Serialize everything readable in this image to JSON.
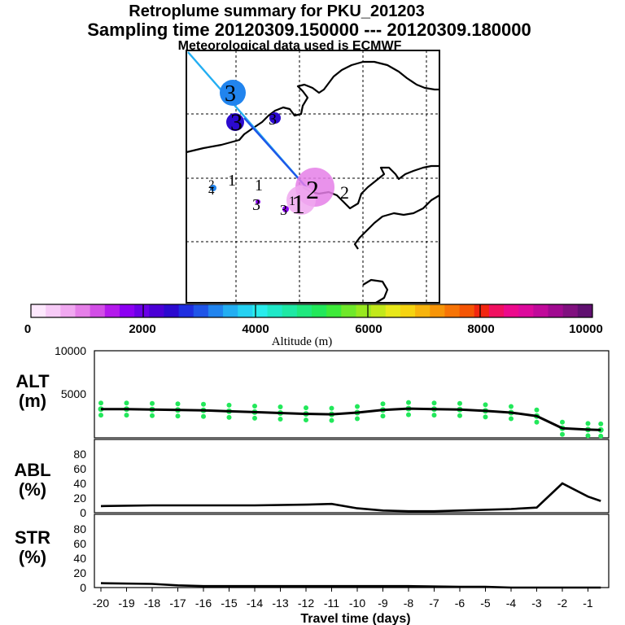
{
  "header": {
    "title": "Retroplume summary for PKU_201203",
    "sampling": "Sampling time   20120309.150000 --- 20120309.180000",
    "met": "Meteorological data used is ECMWF"
  },
  "colorbar": {
    "label": "Altitude (m)",
    "ticks": [
      "0",
      "2000",
      "4000",
      "6000",
      "8000",
      "10000"
    ],
    "colors": [
      "#fde8fd",
      "#f7cbf7",
      "#f0a8f0",
      "#e57fe8",
      "#d24ee6",
      "#b41aec",
      "#8c00f2",
      "#6a00e6",
      "#4b00d6",
      "#2c0acf",
      "#1f2ee0",
      "#1f55e8",
      "#2184ee",
      "#23aef2",
      "#25d1f2",
      "#28ecec",
      "#1fe8c8",
      "#1ee8a4",
      "#1fe87e",
      "#22e85a",
      "#3eea3a",
      "#6fe82a",
      "#98e81e",
      "#c2e81a",
      "#e8e81a",
      "#f5d411",
      "#f7b40e",
      "#f79508",
      "#f77406",
      "#f55505",
      "#f22610",
      "#f01060",
      "#ec0a8c",
      "#dc0a9c",
      "#c00a9a",
      "#a00a90",
      "#80107f",
      "#601070"
    ]
  },
  "map": {
    "labels": [
      {
        "text": "3"
      },
      {
        "text": "3"
      },
      {
        "text": "3"
      },
      {
        "text": "2"
      },
      {
        "text": "4"
      },
      {
        "text": "1"
      },
      {
        "text": "1"
      },
      {
        "text": "3"
      },
      {
        "text": "2"
      },
      {
        "text": "2"
      },
      {
        "text": "3"
      },
      {
        "text": "1"
      },
      {
        "text": "1"
      }
    ]
  },
  "chart_data": [
    {
      "type": "line",
      "panel": "ALT",
      "ylabel": "ALT\n(m)",
      "ylabel_lines": [
        "ALT",
        "(m)"
      ],
      "ylim": [
        0,
        10000
      ],
      "yticks": [
        "10000",
        "5000",
        "0"
      ],
      "x": [
        -20,
        -19,
        -18,
        -17,
        -16,
        -15,
        -14,
        -13,
        -12,
        -11,
        -10,
        -9,
        -8,
        -7,
        -6,
        -5,
        -4,
        -3,
        -2,
        -1,
        -0.5
      ],
      "mean_altitude": [
        3300,
        3300,
        3250,
        3200,
        3150,
        3050,
        2950,
        2850,
        2750,
        2700,
        2900,
        3200,
        3350,
        3300,
        3250,
        3100,
        2900,
        2500,
        1100,
        950,
        900
      ],
      "spread_points_color": "#22e85a"
    },
    {
      "type": "line",
      "panel": "ABL",
      "ylabel_lines": [
        "ABL",
        "(%)"
      ],
      "ylim": [
        0,
        100
      ],
      "yticks": [
        "80",
        "60",
        "40",
        "20",
        "0"
      ],
      "x": [
        -20,
        -18,
        -16,
        -14,
        -12,
        -11,
        -10,
        -9,
        -8,
        -7,
        -6,
        -5,
        -4,
        -3,
        -2,
        -1,
        -0.5
      ],
      "values": [
        9,
        10,
        10,
        10,
        11,
        12,
        6,
        3,
        2,
        2,
        3,
        4,
        5,
        7,
        40,
        22,
        16
      ]
    },
    {
      "type": "line",
      "panel": "STR",
      "ylabel_lines": [
        "STR",
        "(%)"
      ],
      "ylim": [
        0,
        100
      ],
      "yticks": [
        "80",
        "60",
        "40",
        "20",
        "0"
      ],
      "x": [
        -20,
        -18,
        -17,
        -16,
        -14,
        -12,
        -10,
        -8,
        -6,
        -5,
        -4,
        -3,
        -2,
        -1,
        -0.5
      ],
      "values": [
        6,
        5,
        3,
        2,
        2,
        2,
        2,
        2,
        1,
        1,
        0,
        0,
        0,
        0,
        0
      ],
      "xticks": [
        "-20",
        "-19",
        "-18",
        "-17",
        "-16",
        "-15",
        "-14",
        "-13",
        "-12",
        "-11",
        "-10",
        "-9",
        "-8",
        "-7",
        "-6",
        "-5",
        "-4",
        "-3",
        "-2",
        "-1"
      ],
      "xlabel": "Travel time (days)"
    }
  ]
}
